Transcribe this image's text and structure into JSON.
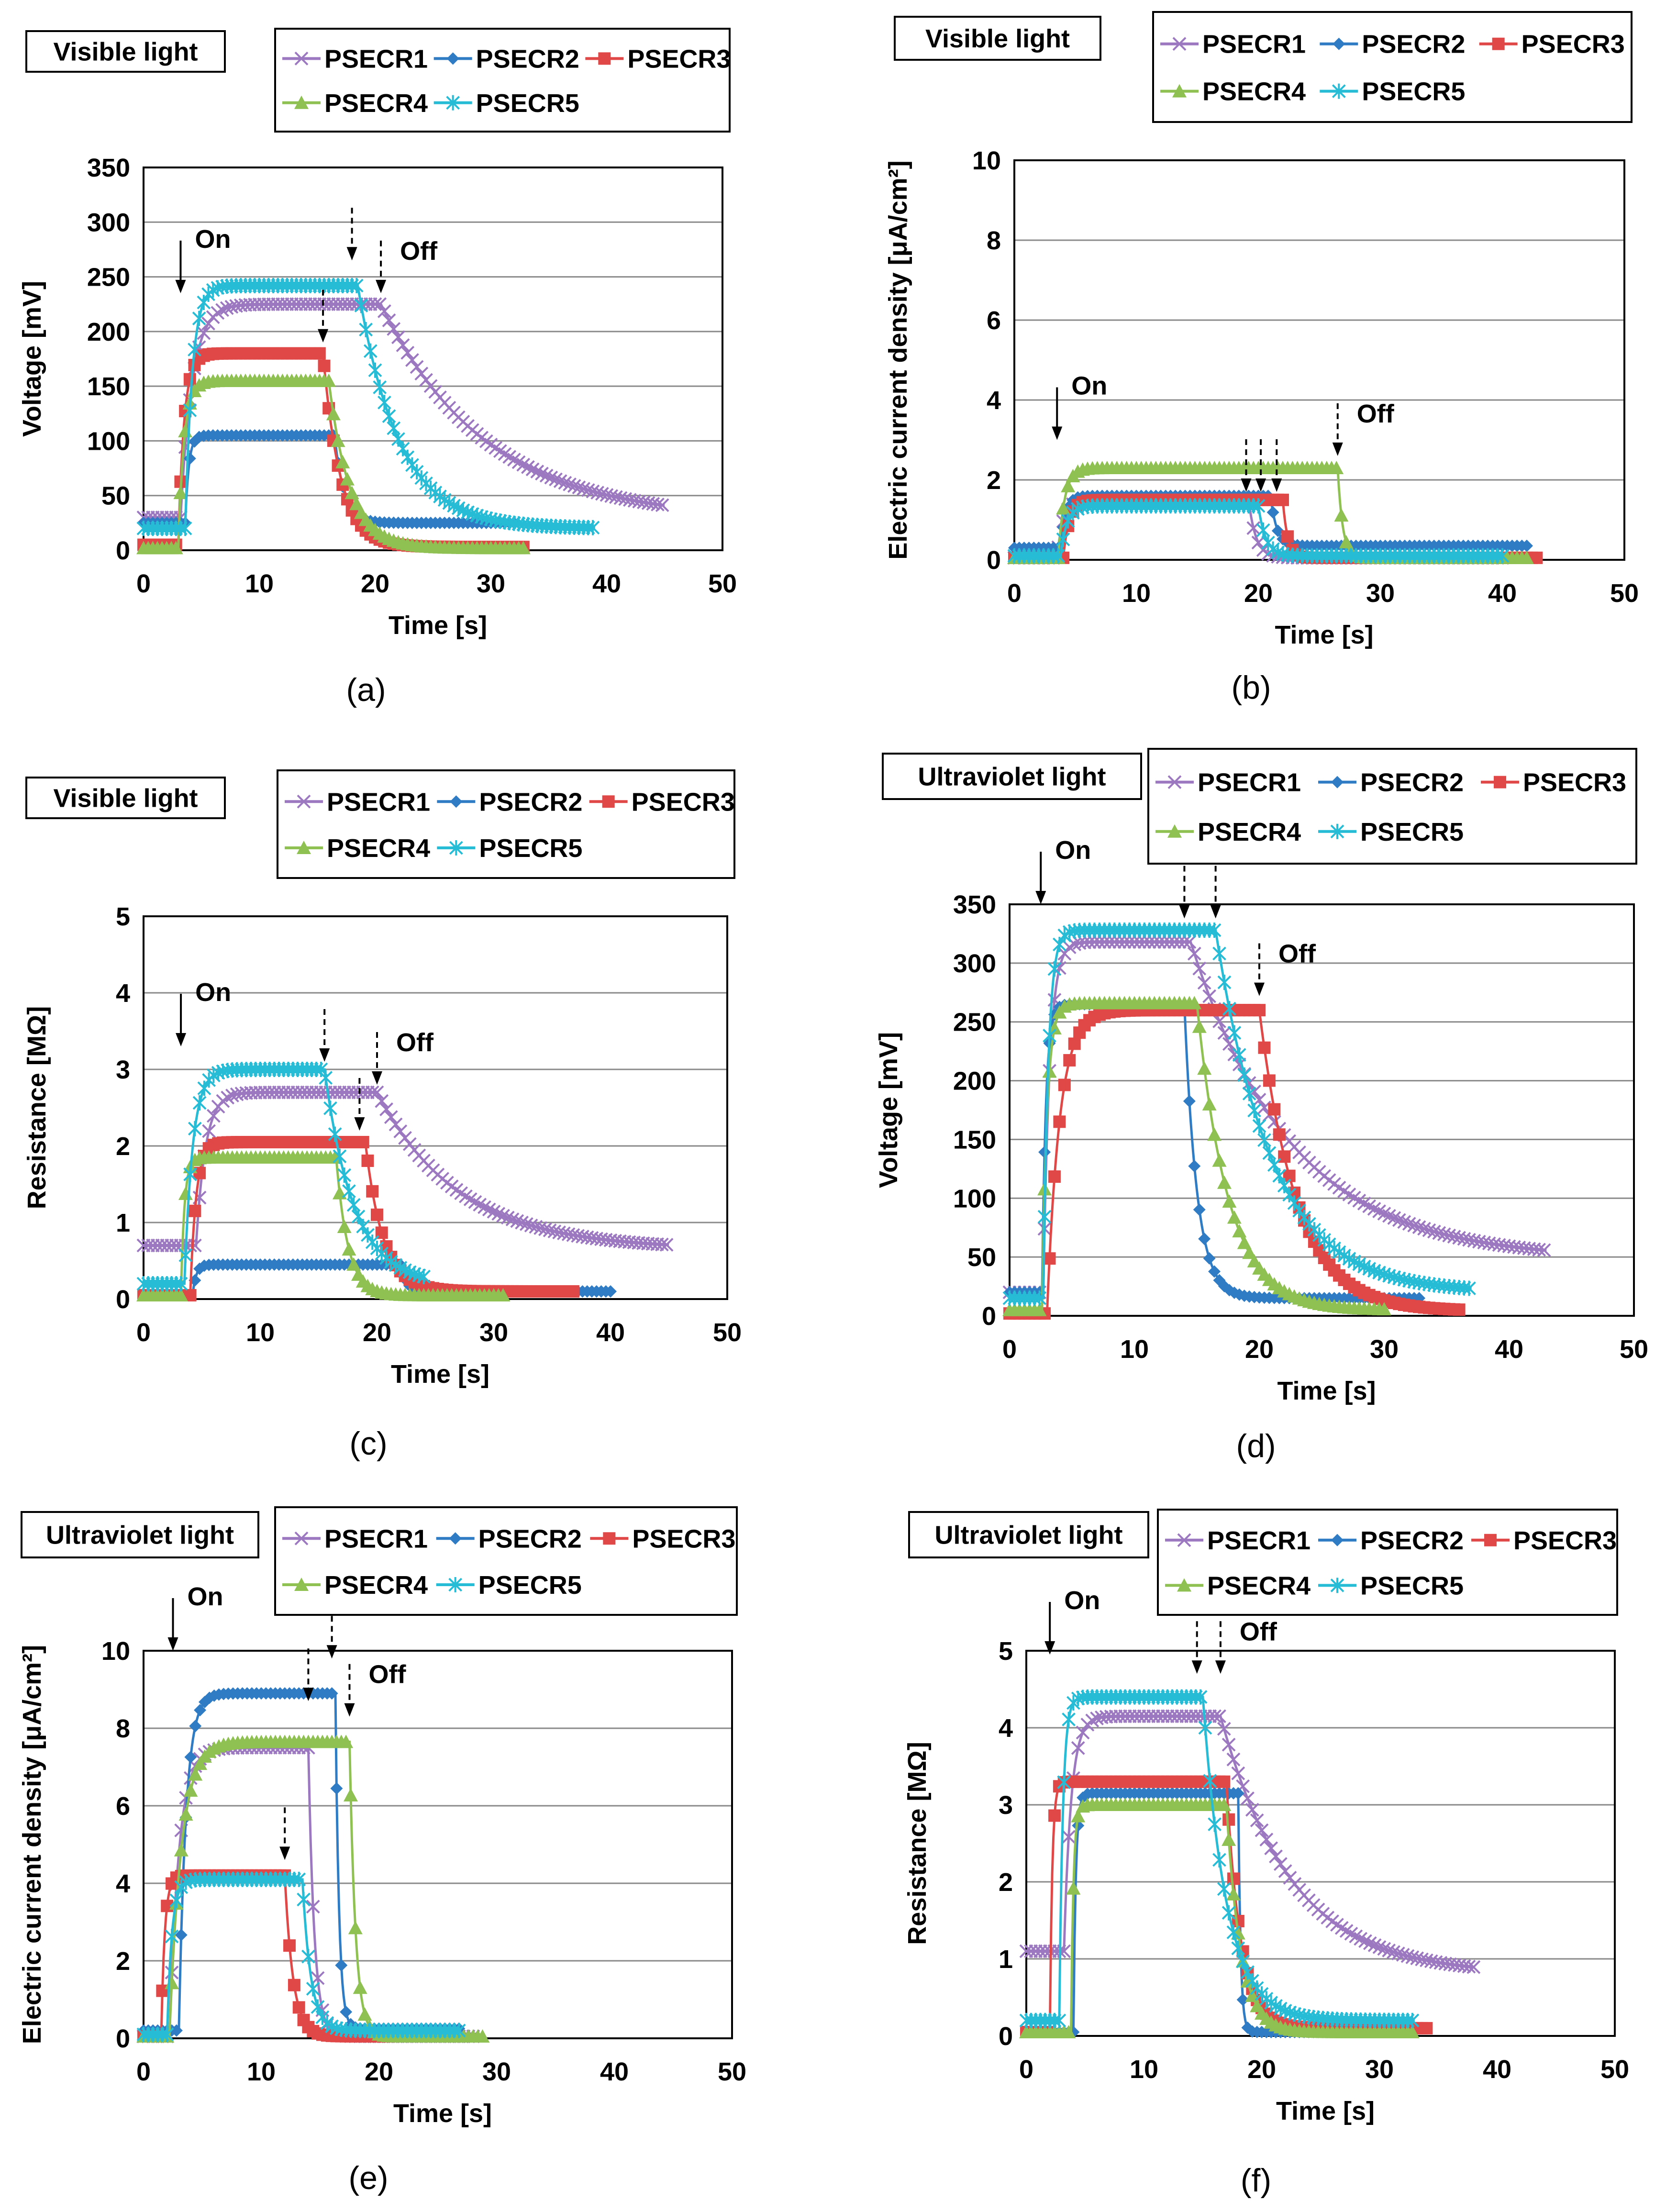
{
  "series_names": [
    "PSECR1",
    "PSECR2",
    "PSECR3",
    "PSECR4",
    "PSECR5"
  ],
  "colors": {
    "PSECR1": "#9b78c0",
    "PSECR2": "#2f7cc4",
    "PSECR3": "#e04848",
    "PSECR4": "#8ec152",
    "PSECR5": "#27bcd6",
    "axis": "#000000",
    "grid": "#8a8a8a"
  },
  "markers": {
    "PSECR1": "cross",
    "PSECR2": "diamond",
    "PSECR3": "square",
    "PSECR4": "triangle",
    "PSECR5": "asterisk"
  },
  "chart_data": [
    {
      "id": "a",
      "panel_label": "(a)",
      "type": "line",
      "light_label": "Visible light",
      "xlabel": "Time  [s]",
      "ylabel": "Voltage  [mV]",
      "xlim": [
        0,
        50
      ],
      "xticks": [
        0,
        10,
        20,
        30,
        40,
        50
      ],
      "ylim": [
        0,
        350
      ],
      "yticks": [
        0,
        50,
        100,
        150,
        200,
        250,
        300,
        350
      ],
      "on_label": "On",
      "off_label": "Off",
      "on_arrows": [
        {
          "x": 3.2,
          "y": 235
        }
      ],
      "off_arrows": [
        {
          "x": 15.5,
          "y": 190
        },
        {
          "x": 18,
          "y": 265
        },
        {
          "x": 20.5,
          "y": 235
        }
      ],
      "series": [
        {
          "name": "PSECR1",
          "baseline": 30,
          "on": 3.2,
          "rise": 1.0,
          "plateau": 225,
          "off": 20.5,
          "decay": 9.0,
          "floor": 28,
          "end": 45
        },
        {
          "name": "PSECR2",
          "baseline": 25,
          "on": 3.6,
          "rise": 0.3,
          "plateau": 105,
          "off": 16.5,
          "decay": 0.8,
          "floor": 25,
          "end": 32
        },
        {
          "name": "PSECR3",
          "baseline": 5,
          "on": 3.0,
          "rise": 0.5,
          "plateau": 180,
          "off": 15.5,
          "decay": 1.5,
          "floor": 3,
          "end": 33
        },
        {
          "name": "PSECR4",
          "baseline": 2,
          "on": 3.0,
          "rise": 0.5,
          "plateau": 155,
          "off": 16.0,
          "decay": 1.8,
          "floor": 2,
          "end": 33
        },
        {
          "name": "PSECR5",
          "baseline": 20,
          "on": 3.6,
          "rise": 0.6,
          "plateau": 242,
          "off": 18.5,
          "decay": 3.5,
          "floor": 20,
          "end": 39
        }
      ]
    },
    {
      "id": "b",
      "panel_label": "(b)",
      "type": "line",
      "light_label": "Visible light",
      "xlabel": "Time  [s]",
      "ylabel": "Electric current density  [μA/cm²]",
      "xlim": [
        0,
        50
      ],
      "xticks": [
        0,
        10,
        20,
        30,
        40,
        50
      ],
      "ylim": [
        0,
        10
      ],
      "yticks": [
        0,
        2,
        4,
        6,
        8,
        10
      ],
      "on_label": "On",
      "off_label": "Off",
      "on_arrows": [
        {
          "x": 3.5,
          "y": 3.0
        }
      ],
      "off_arrows": [
        {
          "x": 19,
          "y": 1.7
        },
        {
          "x": 20.2,
          "y": 1.7
        },
        {
          "x": 21.5,
          "y": 1.7
        },
        {
          "x": 26.5,
          "y": 2.6
        }
      ],
      "series": [
        {
          "name": "PSECR1",
          "baseline": 0.05,
          "on": 3.5,
          "rise": 0.5,
          "plateau": 1.5,
          "off": 19.2,
          "decay": 0.6,
          "floor": 0.05,
          "end": 40
        },
        {
          "name": "PSECR2",
          "baseline": 0.3,
          "on": 3.8,
          "rise": 0.4,
          "plateau": 1.6,
          "off": 21.0,
          "decay": 0.5,
          "floor": 0.35,
          "end": 42
        },
        {
          "name": "PSECR3",
          "baseline": 0.05,
          "on": 4.0,
          "rise": 0.5,
          "plateau": 1.5,
          "off": 22.0,
          "decay": 0.4,
          "floor": 0.05,
          "end": 43
        },
        {
          "name": "PSECR4",
          "baseline": 0.05,
          "on": 3.6,
          "rise": 0.5,
          "plateau": 2.3,
          "off": 26.5,
          "decay": 0.4,
          "floor": 0.05,
          "end": 42
        },
        {
          "name": "PSECR5",
          "baseline": 0.1,
          "on": 3.8,
          "rise": 0.5,
          "plateau": 1.35,
          "off": 20.0,
          "decay": 0.6,
          "floor": 0.1,
          "end": 40
        }
      ]
    },
    {
      "id": "c",
      "panel_label": "(c)",
      "type": "line",
      "light_label": "Visible light",
      "xlabel": "Time  [s]",
      "ylabel": "Resistance  [MΩ]",
      "xlim": [
        0,
        50
      ],
      "xticks": [
        0,
        10,
        20,
        30,
        40,
        50
      ],
      "ylim": [
        0,
        5
      ],
      "yticks": [
        0,
        1,
        2,
        3,
        4,
        5
      ],
      "on_label": "On",
      "off_label": "Off",
      "on_arrows": [
        {
          "x": 3.2,
          "y": 3.3
        }
      ],
      "off_arrows": [
        {
          "x": 15.5,
          "y": 3.1
        },
        {
          "x": 18.5,
          "y": 2.2
        },
        {
          "x": 20,
          "y": 2.8
        }
      ],
      "series": [
        {
          "name": "PSECR1",
          "baseline": 0.7,
          "on": 4.5,
          "rise": 0.8,
          "plateau": 2.7,
          "off": 20.0,
          "decay": 7.0,
          "floor": 0.65,
          "end": 45
        },
        {
          "name": "PSECR2",
          "baseline": 0.05,
          "on": 4.2,
          "rise": 0.3,
          "plateau": 0.45,
          "off": 22.0,
          "decay": 0.5,
          "floor": 0.1,
          "end": 40
        },
        {
          "name": "PSECR3",
          "baseline": 0.05,
          "on": 4.0,
          "rise": 0.5,
          "plateau": 2.05,
          "off": 19.0,
          "decay": 1.5,
          "floor": 0.1,
          "end": 37
        },
        {
          "name": "PSECR4",
          "baseline": 0.05,
          "on": 3.2,
          "rise": 0.3,
          "plateau": 1.85,
          "off": 16.5,
          "decay": 1.0,
          "floor": 0.05,
          "end": 31
        },
        {
          "name": "PSECR5",
          "baseline": 0.2,
          "on": 3.5,
          "rise": 0.7,
          "plateau": 3.0,
          "off": 15.5,
          "decay": 2.5,
          "floor": 0.2,
          "end": 24
        }
      ]
    },
    {
      "id": "d",
      "panel_label": "(d)",
      "type": "line",
      "light_label": "Ultraviolet light",
      "xlabel": "Time  [s]",
      "ylabel": "Voltage  [mV]",
      "xlim": [
        0,
        50
      ],
      "xticks": [
        0,
        10,
        20,
        30,
        40,
        50
      ],
      "ylim": [
        0,
        350
      ],
      "yticks": [
        0,
        50,
        100,
        150,
        200,
        250,
        300,
        350
      ],
      "on_label": "On",
      "off_label": "Off",
      "on_arrows": [
        {
          "x": 2.5,
          "y": 350
        }
      ],
      "off_arrows": [
        {
          "x": 14,
          "y": 338
        },
        {
          "x": 16.5,
          "y": 338
        },
        {
          "x": 20,
          "y": 272
        }
      ],
      "series": [
        {
          "name": "PSECR1",
          "baseline": 20,
          "on": 2.7,
          "rise": 0.5,
          "plateau": 318,
          "off": 14.5,
          "decay": 8.0,
          "floor": 48,
          "end": 43
        },
        {
          "name": "PSECR2",
          "baseline": 20,
          "on": 2.6,
          "rise": 0.3,
          "plateau": 265,
          "off": 14.0,
          "decay": 1.0,
          "floor": 15,
          "end": 33
        },
        {
          "name": "PSECR3",
          "baseline": 2,
          "on": 3.0,
          "rise": 1.0,
          "plateau": 260,
          "off": 20.0,
          "decay": 3.0,
          "floor": 4,
          "end": 36
        },
        {
          "name": "PSECR4",
          "baseline": 5,
          "on": 2.6,
          "rise": 0.4,
          "plateau": 266,
          "off": 15.0,
          "decay": 2.5,
          "floor": 5,
          "end": 30
        },
        {
          "name": "PSECR5",
          "baseline": 15,
          "on": 2.7,
          "rise": 0.4,
          "plateau": 328,
          "off": 16.5,
          "decay": 4.5,
          "floor": 20,
          "end": 37
        }
      ]
    },
    {
      "id": "e",
      "panel_label": "(e)",
      "type": "line",
      "light_label": "Ultraviolet light",
      "xlabel": "Time  [s]",
      "ylabel": "Electric current density  [μA/cm²]",
      "xlim": [
        0,
        50
      ],
      "xticks": [
        0,
        10,
        20,
        30,
        40,
        50
      ],
      "ylim": [
        0,
        10
      ],
      "yticks": [
        0,
        2,
        4,
        6,
        8,
        10
      ],
      "on_label": "On",
      "off_label": "Off",
      "on_arrows": [
        {
          "x": 2.5,
          "y": 10.0
        }
      ],
      "off_arrows": [
        {
          "x": 12,
          "y": 4.6
        },
        {
          "x": 14,
          "y": 8.7
        },
        {
          "x": 16,
          "y": 9.8
        },
        {
          "x": 17.5,
          "y": 8.3
        }
      ],
      "series": [
        {
          "name": "PSECR1",
          "baseline": 0.05,
          "on": 2.2,
          "rise": 0.8,
          "plateau": 7.5,
          "off": 14.0,
          "decay": 0.5,
          "floor": 0.05,
          "end": 28
        },
        {
          "name": "PSECR2",
          "baseline": 0.2,
          "on": 3.0,
          "rise": 0.6,
          "plateau": 8.9,
          "off": 16.3,
          "decay": 0.3,
          "floor": 0.25,
          "end": 27
        },
        {
          "name": "PSECR3",
          "baseline": 0.05,
          "on": 1.5,
          "rise": 0.3,
          "plateau": 4.2,
          "off": 12.0,
          "decay": 0.7,
          "floor": 0.05,
          "end": 25
        },
        {
          "name": "PSECR4",
          "baseline": 0.05,
          "on": 2.2,
          "rise": 1.0,
          "plateau": 7.65,
          "off": 17.5,
          "decay": 0.5,
          "floor": 0.05,
          "end": 29
        },
        {
          "name": "PSECR5",
          "baseline": 0.1,
          "on": 2.0,
          "rise": 0.4,
          "plateau": 4.1,
          "off": 13.5,
          "decay": 0.7,
          "floor": 0.2,
          "end": 27
        }
      ]
    },
    {
      "id": "f",
      "panel_label": "(f)",
      "type": "line",
      "light_label": "Ultraviolet light",
      "xlabel": "Time  [s]",
      "ylabel": "Resistance  [MΩ]",
      "xlim": [
        0,
        50
      ],
      "xticks": [
        0,
        10,
        20,
        30,
        40,
        50
      ],
      "ylim": [
        0,
        5
      ],
      "yticks": [
        0,
        1,
        2,
        3,
        4,
        5
      ],
      "on_label": "On",
      "off_label": "Off",
      "on_arrows": [
        {
          "x": 2,
          "y": 4.95
        }
      ],
      "off_arrows": [
        {
          "x": 14.5,
          "y": 4.7
        },
        {
          "x": 16.5,
          "y": 4.7
        }
      ],
      "series": [
        {
          "name": "PSECR1",
          "baseline": 1.1,
          "on": 3.2,
          "rise": 0.6,
          "plateau": 4.15,
          "off": 16.5,
          "decay": 6.0,
          "floor": 0.8,
          "end": 38
        },
        {
          "name": "PSECR2",
          "baseline": 0.05,
          "on": 4.0,
          "rise": 0.2,
          "plateau": 3.15,
          "off": 18.0,
          "decay": 0.2,
          "floor": 0.05,
          "end": 29
        },
        {
          "name": "PSECR3",
          "baseline": 0.05,
          "on": 2.0,
          "rise": 0.2,
          "plateau": 3.3,
          "off": 17.0,
          "decay": 1.2,
          "floor": 0.1,
          "end": 34
        },
        {
          "name": "PSECR4",
          "baseline": 0.05,
          "on": 3.8,
          "rise": 0.2,
          "plateau": 3.0,
          "off": 17.0,
          "decay": 1.2,
          "floor": 0.05,
          "end": 33
        },
        {
          "name": "PSECR5",
          "baseline": 0.2,
          "on": 2.8,
          "rise": 0.3,
          "plateau": 4.4,
          "off": 15.0,
          "decay": 2.0,
          "floor": 0.2,
          "end": 33
        }
      ]
    }
  ]
}
